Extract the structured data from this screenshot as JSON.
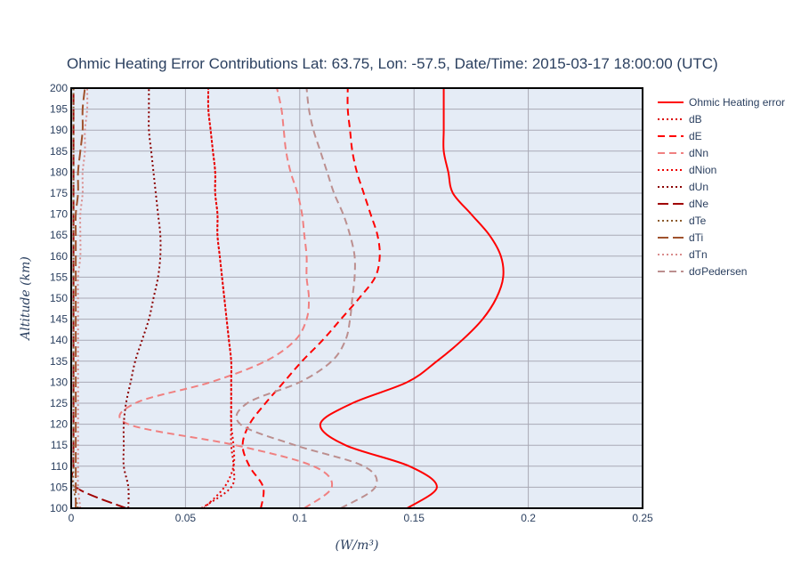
{
  "chart_data": {
    "type": "line",
    "title": "Ohmic Heating Error Contributions Lat: 63.75, Lon: -57.5, Date/Time: 2015-03-17 18:00:00 (UTC)",
    "xlabel": "(W/m³)",
    "ylabel": "Altitude (km)",
    "xlim": [
      0,
      0.25
    ],
    "ylim": [
      100,
      200
    ],
    "xticks": [
      0,
      0.05,
      0.1,
      0.15,
      0.2,
      0.25
    ],
    "xtick_labels": [
      "0",
      "0.05",
      "0.1",
      "0.15",
      "0.2",
      "0.25"
    ],
    "yticks": [
      100,
      105,
      110,
      115,
      120,
      125,
      130,
      135,
      140,
      145,
      150,
      155,
      160,
      165,
      170,
      175,
      180,
      185,
      190,
      195,
      200
    ],
    "grid": true,
    "legend_position": "right",
    "plot_background": "#e5ecf6",
    "y": [
      100,
      105,
      110,
      115,
      120,
      125,
      130,
      135,
      140,
      145,
      150,
      155,
      160,
      165,
      170,
      175,
      180,
      185,
      190,
      195,
      200
    ],
    "series": [
      {
        "name": "Ohmic Heating error",
        "color": "#ff0000",
        "dash": "solid",
        "values": [
          0.147,
          0.16,
          0.148,
          0.12,
          0.109,
          0.123,
          0.147,
          0.16,
          0.171,
          0.18,
          0.186,
          0.189,
          0.188,
          0.183,
          0.175,
          0.167,
          0.165,
          0.163,
          0.163,
          0.163,
          0.163
        ]
      },
      {
        "name": "dB",
        "color": "#dd0000",
        "dash": "dot",
        "values": [
          0.057,
          0.07,
          0.071,
          0.07,
          0.07,
          0.07,
          0.07,
          0.07,
          0.069,
          0.068,
          0.067,
          0.066,
          0.065,
          0.064,
          0.064,
          0.063,
          0.063,
          0.062,
          0.061,
          0.06,
          0.06
        ]
      },
      {
        "name": "dE",
        "color": "#ff0000",
        "dash": "dash",
        "values": [
          0.083,
          0.084,
          0.078,
          0.075,
          0.078,
          0.085,
          0.093,
          0.101,
          0.11,
          0.118,
          0.126,
          0.133,
          0.135,
          0.134,
          0.131,
          0.128,
          0.125,
          0.123,
          0.122,
          0.121,
          0.121
        ]
      },
      {
        "name": "dNn",
        "color": "#f08080",
        "dash": "dash",
        "values": [
          0.102,
          0.114,
          0.106,
          0.072,
          0.025,
          0.028,
          0.061,
          0.085,
          0.098,
          0.103,
          0.104,
          0.103,
          0.103,
          0.102,
          0.101,
          0.099,
          0.096,
          0.094,
          0.093,
          0.092,
          0.09
        ]
      },
      {
        "name": "dNion",
        "color": "#ee0000",
        "dash": "dot",
        "values": [
          0.058,
          0.067,
          0.071,
          0.071,
          0.07,
          0.07,
          0.07,
          0.07,
          0.069,
          0.068,
          0.067,
          0.066,
          0.065,
          0.064,
          0.064,
          0.063,
          0.063,
          0.062,
          0.061,
          0.06,
          0.06
        ]
      },
      {
        "name": "dUn",
        "color": "#8b0000",
        "dash": "dot",
        "values": [
          0.025,
          0.025,
          0.023,
          0.023,
          0.023,
          0.024,
          0.026,
          0.028,
          0.031,
          0.034,
          0.036,
          0.038,
          0.039,
          0.039,
          0.038,
          0.037,
          0.036,
          0.035,
          0.034,
          0.034,
          0.034
        ]
      },
      {
        "name": "dNe",
        "color": "#a00000",
        "dash": "longdash",
        "values": [
          0.024,
          0.002,
          0.001,
          0.001,
          0.001,
          0.001,
          0.001,
          0.001,
          0.001,
          0.001,
          0.001,
          0.001,
          0.001,
          0.001,
          0.001,
          0.001,
          0.001,
          0.001,
          0.001,
          0.001,
          0.001
        ]
      },
      {
        "name": "dTe",
        "color": "#8b5a2b",
        "dash": "dot",
        "values": [
          0.003,
          0.001,
          0.001,
          0.001,
          0.001,
          0.001,
          0.001,
          0.001,
          0.001,
          0.001,
          0.001,
          0.001,
          0.001,
          0.001,
          0.001,
          0.001,
          0.001,
          0.001,
          0.001,
          0.001,
          0.001
        ]
      },
      {
        "name": "dTi",
        "color": "#a0522d",
        "dash": "longdash",
        "values": [
          0.002,
          0.002,
          0.002,
          0.002,
          0.002,
          0.002,
          0.002,
          0.002,
          0.002,
          0.002,
          0.002,
          0.002,
          0.002,
          0.002,
          0.002,
          0.003,
          0.003,
          0.004,
          0.005,
          0.005,
          0.006
        ]
      },
      {
        "name": "dTn",
        "color": "#d98c8c",
        "dash": "dot",
        "values": [
          0.004,
          0.003,
          0.003,
          0.003,
          0.003,
          0.003,
          0.003,
          0.003,
          0.003,
          0.003,
          0.003,
          0.003,
          0.004,
          0.004,
          0.004,
          0.005,
          0.005,
          0.006,
          0.006,
          0.007,
          0.007
        ]
      },
      {
        "name": "dσPedersen",
        "color": "#bc8f8f",
        "dash": "dash",
        "values": [
          0.118,
          0.133,
          0.128,
          0.098,
          0.074,
          0.077,
          0.1,
          0.114,
          0.12,
          0.122,
          0.123,
          0.124,
          0.124,
          0.122,
          0.119,
          0.115,
          0.112,
          0.109,
          0.106,
          0.104,
          0.103
        ]
      }
    ]
  }
}
